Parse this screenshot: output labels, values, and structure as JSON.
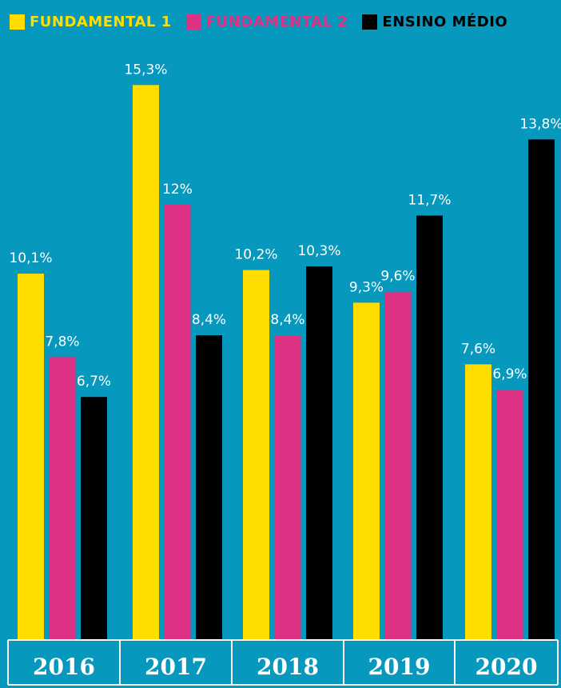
{
  "chart_data": {
    "type": "bar",
    "categories": [
      "2016",
      "2017",
      "2018",
      "2019",
      "2020"
    ],
    "series": [
      {
        "name": "FUNDAMENTAL 1",
        "color": "#ffdd00",
        "values": [
          10.1,
          15.3,
          10.2,
          9.3,
          7.6
        ],
        "labels": [
          "10,1%",
          "15,3%",
          "10,2%",
          "9,3%",
          "7,6%"
        ]
      },
      {
        "name": "FUNDAMENTAL 2",
        "color": "#dd3184",
        "values": [
          7.8,
          12,
          8.4,
          9.6,
          6.9
        ],
        "labels": [
          "7,8%",
          "12%",
          "8,4%",
          "9,6%",
          "6,9%"
        ]
      },
      {
        "name": "ENSINO MÉDIO",
        "color": "#000000",
        "values": [
          6.7,
          8.4,
          10.3,
          11.7,
          13.8
        ],
        "labels": [
          "6,7%",
          "8,4%",
          "10,3%",
          "11,7%",
          "13,8%"
        ]
      }
    ],
    "ylim": [
      0,
      17.76
    ],
    "legend_position": "top-left",
    "grid": false
  },
  "colors": {
    "background": "#0698bd",
    "text": "#ffffff",
    "axis": "#ffffff"
  }
}
